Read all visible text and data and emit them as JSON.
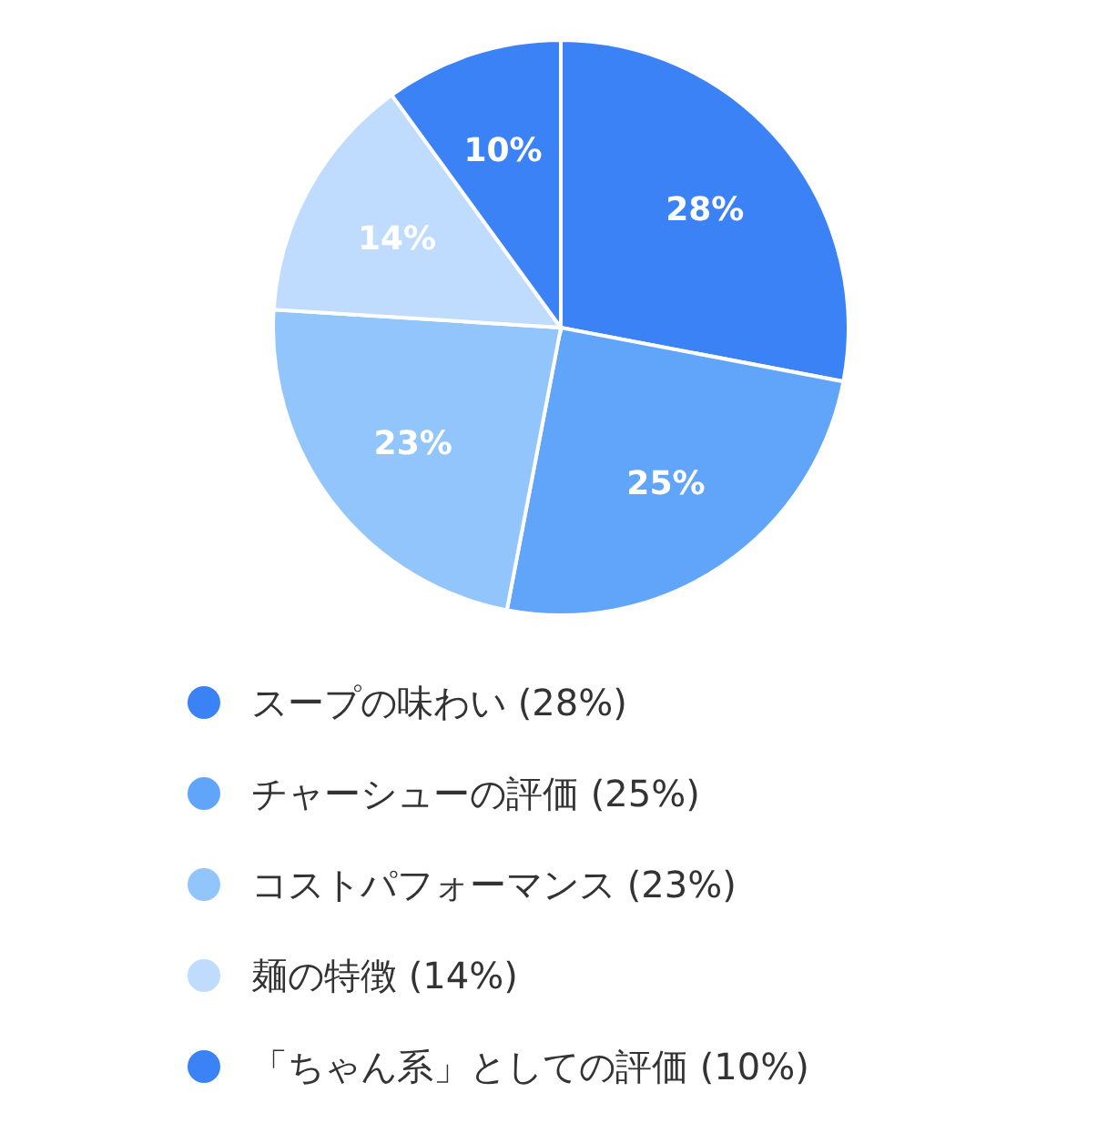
{
  "chart_data": {
    "type": "pie",
    "categories": [
      "スープの味わい (28%)",
      "チャーシューの評価 (25%)",
      "コストパフォーマンス (23%)",
      "麺の特徴 (14%)",
      "「ちゃん系」としての評価 (10%)"
    ],
    "values": [
      28,
      25,
      23,
      14,
      10
    ],
    "value_labels": [
      "28%",
      "25%",
      "23%",
      "14%",
      "10%"
    ],
    "colors": [
      "#3b82f6",
      "#60a5fa",
      "#93c5fd",
      "#bfdbfe",
      "#3b82f6"
    ],
    "legend": "bottom"
  }
}
